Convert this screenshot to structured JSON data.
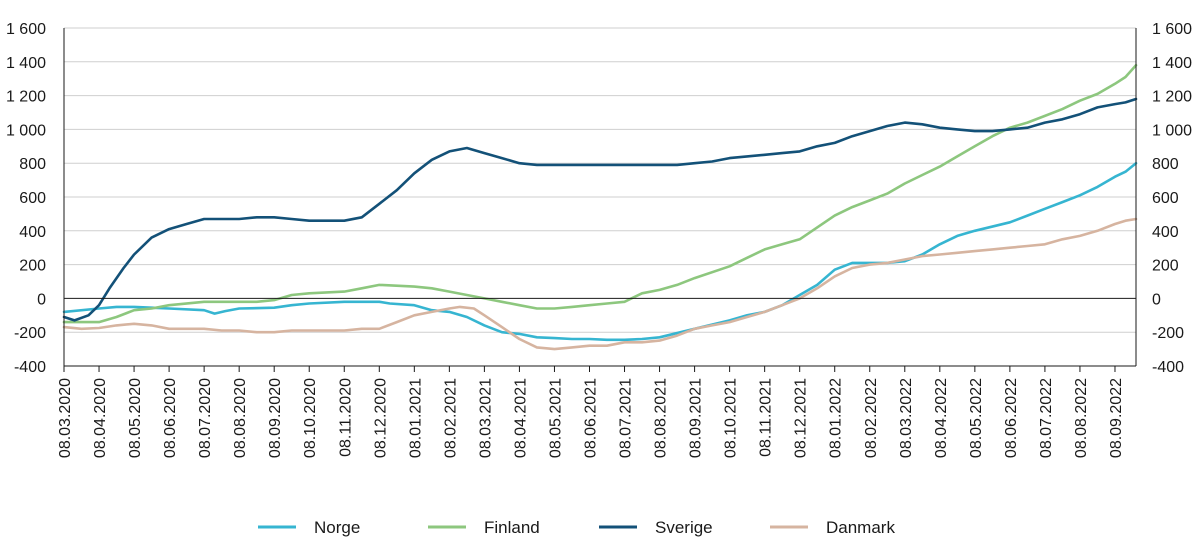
{
  "chart_data": {
    "type": "line",
    "title": "",
    "xlabel": "",
    "ylabel": "",
    "ylim": [
      -400,
      1600
    ],
    "yticks": [
      -400,
      -200,
      0,
      200,
      400,
      600,
      800,
      1000,
      1200,
      1400,
      1600
    ],
    "ytick_labels": [
      "-400",
      "-200",
      "0",
      "200",
      "400",
      "600",
      "800",
      "1 000",
      "1 200",
      "1 400",
      "1 600"
    ],
    "x_tick_labels": [
      "08.03.2020",
      "08.04.2020",
      "08.05.2020",
      "08.06.2020",
      "08.07.2020",
      "08.08.2020",
      "08.09.2020",
      "08.10.2020",
      "08.11.2020",
      "08.12.2020",
      "08.01.2021",
      "08.02.2021",
      "08.03.2021",
      "08.04.2021",
      "08.05.2021",
      "08.06.2021",
      "08.07.2021",
      "08.08.2021",
      "08.09.2021",
      "08.10.2021",
      "08.11.2021",
      "08.12.2021",
      "08.01.2022",
      "08.02.2022",
      "08.03.2022",
      "08.04.2022",
      "08.05.2022",
      "08.06.2022",
      "08.07.2022",
      "08.08.2022",
      "08.09.2022"
    ],
    "x_units": "months since 08.03.2020",
    "xlim": [
      0,
      30.6
    ],
    "legend_position": "bottom",
    "grid": true,
    "series": [
      {
        "name": "Norge",
        "color": "#36b5d1",
        "points": [
          [
            0,
            -80
          ],
          [
            1,
            -60
          ],
          [
            1.5,
            -50
          ],
          [
            2,
            -50
          ],
          [
            2.5,
            -55
          ],
          [
            3,
            -60
          ],
          [
            4,
            -70
          ],
          [
            4.3,
            -90
          ],
          [
            4.6,
            -75
          ],
          [
            5,
            -60
          ],
          [
            6,
            -55
          ],
          [
            6.5,
            -40
          ],
          [
            7,
            -30
          ],
          [
            8,
            -20
          ],
          [
            9,
            -20
          ],
          [
            9.3,
            -30
          ],
          [
            10,
            -40
          ],
          [
            10.5,
            -70
          ],
          [
            11,
            -80
          ],
          [
            11.5,
            -110
          ],
          [
            12,
            -160
          ],
          [
            12.5,
            -200
          ],
          [
            13,
            -210
          ],
          [
            13.5,
            -230
          ],
          [
            14,
            -235
          ],
          [
            14.5,
            -240
          ],
          [
            15,
            -240
          ],
          [
            15.5,
            -245
          ],
          [
            16,
            -245
          ],
          [
            16.5,
            -240
          ],
          [
            17,
            -230
          ],
          [
            18,
            -180
          ],
          [
            19,
            -130
          ],
          [
            19.5,
            -100
          ],
          [
            20,
            -80
          ],
          [
            20.5,
            -40
          ],
          [
            21,
            20
          ],
          [
            21.5,
            80
          ],
          [
            22,
            170
          ],
          [
            22.5,
            210
          ],
          [
            23,
            210
          ],
          [
            23.5,
            210
          ],
          [
            24,
            220
          ],
          [
            24.5,
            260
          ],
          [
            25,
            320
          ],
          [
            25.5,
            370
          ],
          [
            26,
            400
          ],
          [
            27,
            450
          ],
          [
            27.5,
            490
          ],
          [
            28,
            530
          ],
          [
            28.5,
            570
          ],
          [
            29,
            610
          ],
          [
            29.5,
            660
          ],
          [
            30,
            720
          ],
          [
            30.3,
            750
          ],
          [
            30.6,
            800
          ]
        ]
      },
      {
        "name": "Finland",
        "color": "#8dc77e",
        "points": [
          [
            0,
            -140
          ],
          [
            1,
            -140
          ],
          [
            1.5,
            -110
          ],
          [
            2,
            -70
          ],
          [
            2.5,
            -60
          ],
          [
            3,
            -40
          ],
          [
            4,
            -20
          ],
          [
            5,
            -20
          ],
          [
            5.5,
            -20
          ],
          [
            6,
            -10
          ],
          [
            6.5,
            20
          ],
          [
            7,
            30
          ],
          [
            8,
            40
          ],
          [
            8.5,
            60
          ],
          [
            9,
            80
          ],
          [
            10,
            70
          ],
          [
            10.5,
            60
          ],
          [
            11,
            40
          ],
          [
            11.5,
            20
          ],
          [
            12,
            0
          ],
          [
            12.5,
            -20
          ],
          [
            13,
            -40
          ],
          [
            13.5,
            -60
          ],
          [
            14,
            -60
          ],
          [
            14.5,
            -50
          ],
          [
            15,
            -40
          ],
          [
            15.5,
            -30
          ],
          [
            16,
            -20
          ],
          [
            16.5,
            30
          ],
          [
            17,
            50
          ],
          [
            17.5,
            80
          ],
          [
            18,
            120
          ],
          [
            19,
            190
          ],
          [
            19.5,
            240
          ],
          [
            20,
            290
          ],
          [
            20.5,
            320
          ],
          [
            21,
            350
          ],
          [
            21.5,
            420
          ],
          [
            22,
            490
          ],
          [
            22.5,
            540
          ],
          [
            23,
            580
          ],
          [
            23.5,
            620
          ],
          [
            24,
            680
          ],
          [
            24.5,
            730
          ],
          [
            25,
            780
          ],
          [
            25.5,
            840
          ],
          [
            26,
            900
          ],
          [
            26.5,
            960
          ],
          [
            27,
            1010
          ],
          [
            27.5,
            1040
          ],
          [
            28,
            1080
          ],
          [
            28.5,
            1120
          ],
          [
            29,
            1170
          ],
          [
            29.5,
            1210
          ],
          [
            30,
            1270
          ],
          [
            30.3,
            1310
          ],
          [
            30.6,
            1380
          ]
        ]
      },
      {
        "name": "Sverige",
        "color": "#135178",
        "points": [
          [
            0,
            -110
          ],
          [
            0.3,
            -130
          ],
          [
            0.7,
            -100
          ],
          [
            1,
            -40
          ],
          [
            1.3,
            60
          ],
          [
            1.7,
            180
          ],
          [
            2,
            260
          ],
          [
            2.5,
            360
          ],
          [
            3,
            410
          ],
          [
            3.5,
            440
          ],
          [
            4,
            470
          ],
          [
            4.5,
            470
          ],
          [
            5,
            470
          ],
          [
            5.5,
            480
          ],
          [
            6,
            480
          ],
          [
            6.5,
            470
          ],
          [
            7,
            460
          ],
          [
            7.5,
            460
          ],
          [
            8,
            460
          ],
          [
            8.5,
            480
          ],
          [
            9,
            560
          ],
          [
            9.5,
            640
          ],
          [
            10,
            740
          ],
          [
            10.5,
            820
          ],
          [
            11,
            870
          ],
          [
            11.5,
            890
          ],
          [
            12,
            860
          ],
          [
            12.5,
            830
          ],
          [
            13,
            800
          ],
          [
            13.5,
            790
          ],
          [
            14,
            790
          ],
          [
            14.5,
            790
          ],
          [
            15,
            790
          ],
          [
            15.5,
            790
          ],
          [
            16,
            790
          ],
          [
            17,
            790
          ],
          [
            17.5,
            790
          ],
          [
            18,
            800
          ],
          [
            18.5,
            810
          ],
          [
            19,
            830
          ],
          [
            19.5,
            840
          ],
          [
            20,
            850
          ],
          [
            20.5,
            860
          ],
          [
            21,
            870
          ],
          [
            21.5,
            900
          ],
          [
            22,
            920
          ],
          [
            22.5,
            960
          ],
          [
            23,
            990
          ],
          [
            23.5,
            1020
          ],
          [
            24,
            1040
          ],
          [
            24.5,
            1030
          ],
          [
            25,
            1010
          ],
          [
            25.5,
            1000
          ],
          [
            26,
            990
          ],
          [
            26.5,
            990
          ],
          [
            27,
            1000
          ],
          [
            27.5,
            1010
          ],
          [
            28,
            1040
          ],
          [
            28.5,
            1060
          ],
          [
            29,
            1090
          ],
          [
            29.5,
            1130
          ],
          [
            30,
            1150
          ],
          [
            30.3,
            1160
          ],
          [
            30.6,
            1180
          ]
        ]
      },
      {
        "name": "Danmark",
        "color": "#d6b4a0",
        "points": [
          [
            0,
            -170
          ],
          [
            0.5,
            -180
          ],
          [
            1,
            -175
          ],
          [
            1.5,
            -160
          ],
          [
            2,
            -150
          ],
          [
            2.5,
            -160
          ],
          [
            3,
            -180
          ],
          [
            4,
            -180
          ],
          [
            4.5,
            -190
          ],
          [
            5,
            -190
          ],
          [
            5.5,
            -200
          ],
          [
            6,
            -200
          ],
          [
            6.5,
            -190
          ],
          [
            7,
            -190
          ],
          [
            7.5,
            -190
          ],
          [
            8,
            -190
          ],
          [
            8.5,
            -180
          ],
          [
            9,
            -180
          ],
          [
            9.5,
            -140
          ],
          [
            10,
            -100
          ],
          [
            10.5,
            -80
          ],
          [
            11,
            -60
          ],
          [
            11.3,
            -50
          ],
          [
            11.7,
            -60
          ],
          [
            12,
            -100
          ],
          [
            12.5,
            -170
          ],
          [
            13,
            -240
          ],
          [
            13.5,
            -290
          ],
          [
            14,
            -300
          ],
          [
            14.5,
            -290
          ],
          [
            15,
            -280
          ],
          [
            15.5,
            -280
          ],
          [
            16,
            -260
          ],
          [
            16.5,
            -260
          ],
          [
            17,
            -250
          ],
          [
            17.5,
            -220
          ],
          [
            18,
            -180
          ],
          [
            18.5,
            -160
          ],
          [
            19,
            -140
          ],
          [
            19.5,
            -110
          ],
          [
            20,
            -80
          ],
          [
            20.5,
            -40
          ],
          [
            21,
            0
          ],
          [
            21.5,
            60
          ],
          [
            22,
            130
          ],
          [
            22.5,
            180
          ],
          [
            23,
            200
          ],
          [
            23.5,
            210
          ],
          [
            24,
            230
          ],
          [
            24.5,
            250
          ],
          [
            25,
            260
          ],
          [
            25.5,
            270
          ],
          [
            26,
            280
          ],
          [
            26.5,
            290
          ],
          [
            27,
            300
          ],
          [
            27.5,
            310
          ],
          [
            28,
            320
          ],
          [
            28.5,
            350
          ],
          [
            29,
            370
          ],
          [
            29.5,
            400
          ],
          [
            30,
            440
          ],
          [
            30.3,
            460
          ],
          [
            30.6,
            470
          ]
        ]
      }
    ]
  }
}
